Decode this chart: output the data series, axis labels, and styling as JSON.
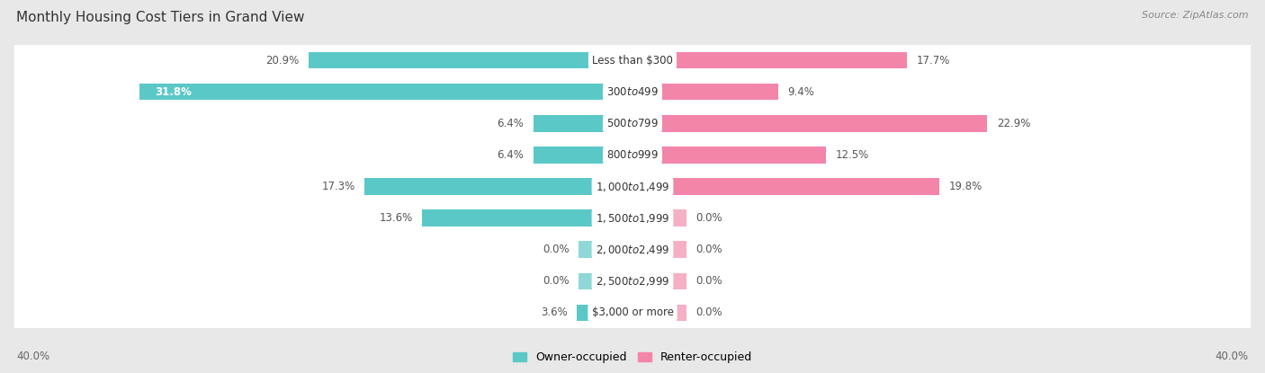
{
  "title": "Monthly Housing Cost Tiers in Grand View",
  "source": "Source: ZipAtlas.com",
  "categories": [
    "Less than $300",
    "$300 to $499",
    "$500 to $799",
    "$800 to $999",
    "$1,000 to $1,499",
    "$1,500 to $1,999",
    "$2,000 to $2,499",
    "$2,500 to $2,999",
    "$3,000 or more"
  ],
  "owner_values": [
    20.9,
    31.8,
    6.4,
    6.4,
    17.3,
    13.6,
    0.0,
    0.0,
    3.6
  ],
  "renter_values": [
    17.7,
    9.4,
    22.9,
    12.5,
    19.8,
    0.0,
    0.0,
    0.0,
    0.0
  ],
  "owner_color": "#5BC8C8",
  "renter_color": "#F285A8",
  "owner_color_light": "#8ED8D8",
  "renter_color_light": "#F5B0C5",
  "owner_label": "Owner-occupied",
  "renter_label": "Renter-occupied",
  "axis_limit": 40.0,
  "axis_label_left": "40.0%",
  "axis_label_right": "40.0%",
  "bg_color": "#e8e8e8",
  "row_bg_color": "#ffffff",
  "title_fontsize": 11,
  "source_fontsize": 8,
  "bar_label_fontsize": 8.5,
  "category_fontsize": 8.5,
  "stub_size": 3.5
}
